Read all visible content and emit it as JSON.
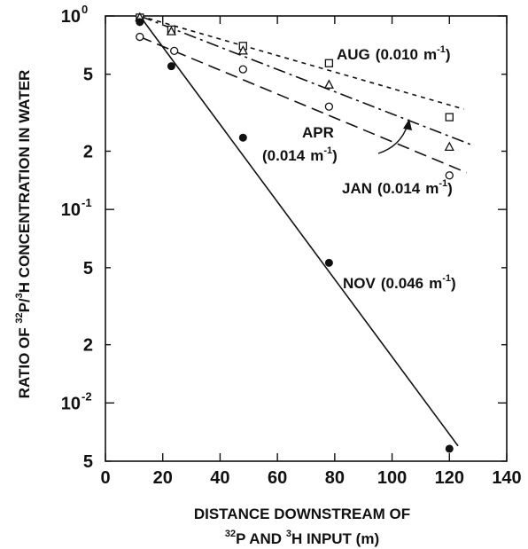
{
  "chart_data": {
    "type": "scatter",
    "ylog": true,
    "xlim": [
      0,
      140
    ],
    "ylim": [
      0.005,
      1.0
    ],
    "grid": false,
    "xlabel": {
      "line1": "DISTANCE DOWNSTREAM OF",
      "line2_parts": [
        "32",
        "P  AND  ",
        "3",
        "H  INPUT (m)"
      ]
    },
    "ylabel_parts": [
      "RATIO OF ",
      "32",
      "P/",
      "3",
      "H CONCENTRATION IN WATER"
    ],
    "x_ticks": [
      0,
      20,
      40,
      60,
      80,
      100,
      120,
      140
    ],
    "x_tick_labels": [
      "0",
      "20",
      "40",
      "60",
      "80",
      "100",
      "120",
      "140"
    ],
    "y_ticks": [
      {
        "value": 1.0,
        "mantissa": "10",
        "exp": "0"
      },
      {
        "value": 0.5,
        "mantissa": "5",
        "exp": ""
      },
      {
        "value": 0.2,
        "mantissa": "2",
        "exp": ""
      },
      {
        "value": 0.1,
        "mantissa": "10",
        "exp": "-1"
      },
      {
        "value": 0.05,
        "mantissa": "5",
        "exp": ""
      },
      {
        "value": 0.02,
        "mantissa": "2",
        "exp": ""
      },
      {
        "value": 0.01,
        "mantissa": "10",
        "exp": "-2"
      },
      {
        "value": 0.005,
        "mantissa": "5",
        "exp": ""
      }
    ],
    "series": [
      {
        "name": "AUG",
        "rate": "0.010",
        "marker": "square",
        "line_style": "dotted",
        "x": [
          12,
          23,
          48,
          78,
          120
        ],
        "y": [
          0.98,
          0.85,
          0.7,
          0.57,
          0.3
        ],
        "fit": {
          "x": [
            12,
            125
          ],
          "y": [
            1.0,
            0.33
          ]
        }
      },
      {
        "name": "APR",
        "rate": "0.014",
        "marker": "triangle",
        "line_style": "dash-dot",
        "x": [
          12,
          23,
          48,
          78,
          120
        ],
        "y": [
          0.98,
          0.83,
          0.66,
          0.44,
          0.21
        ],
        "fit": {
          "x": [
            12,
            128
          ],
          "y": [
            1.0,
            0.215
          ]
        }
      },
      {
        "name": "JAN",
        "rate": "0.014",
        "marker": "circle-open",
        "line_style": "dashed",
        "x": [
          12,
          24,
          48,
          78,
          120
        ],
        "y": [
          0.78,
          0.66,
          0.53,
          0.34,
          0.15
        ],
        "fit": {
          "x": [
            12,
            126
          ],
          "y": [
            0.78,
            0.155
          ]
        }
      },
      {
        "name": "NOV",
        "rate": "0.046",
        "marker": "circle-filled",
        "line_style": "solid",
        "x": [
          12,
          23,
          48,
          78,
          120
        ],
        "y": [
          0.93,
          0.55,
          0.235,
          0.053,
          0.0058
        ],
        "fit": {
          "x": [
            12,
            123
          ],
          "y": [
            1.0,
            0.006
          ]
        }
      }
    ],
    "annotations": {
      "aug": {
        "name": "AUG",
        "open": "(",
        "rate": "0.010",
        "unit": "m",
        "exp": "-1",
        "close": ")"
      },
      "apr_line1": "APR",
      "apr_line2": {
        "open": "(",
        "rate": "0.014",
        "unit": "m",
        "exp": "-1",
        "close": ")"
      },
      "jan": {
        "name": "JAN",
        "open": "(",
        "rate": "0.014",
        "unit": "m",
        "exp": "-1",
        "close": ")"
      },
      "nov": {
        "name": "NOV",
        "open": "(",
        "rate": "0.046",
        "unit": "m",
        "exp": "-1",
        "close": ")"
      }
    }
  }
}
